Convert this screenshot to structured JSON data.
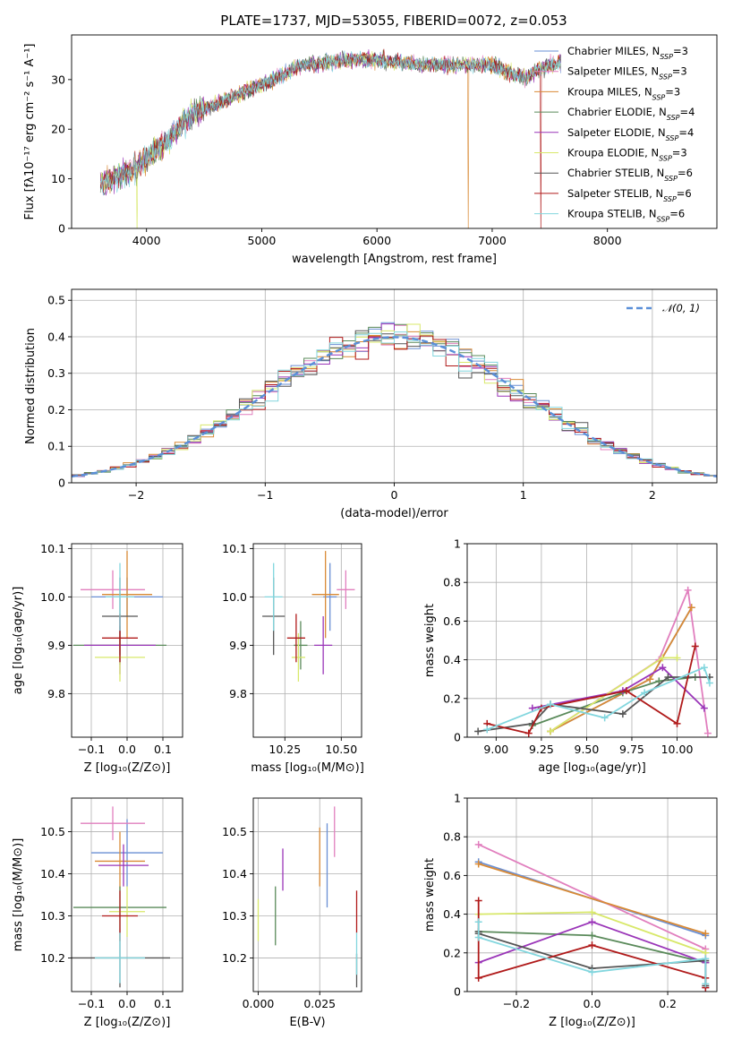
{
  "colors": {
    "Chabrier MILES": "#6a8fd4",
    "Salpeter MILES": "#e17fbe",
    "Kroupa MILES": "#d98a35",
    "Chabrier ELODIE": "#5a8a5a",
    "Salpeter ELODIE": "#9a35b8",
    "Kroupa ELODIE": "#d8e86a",
    "Chabrier STELIB": "#555555",
    "Salpeter STELIB": "#b01a1a",
    "Kroupa STELIB": "#82d6de"
  },
  "chart_data": [
    {
      "id": "spectrum",
      "type": "line",
      "title": "PLATE=1737, MJD=53055, FIBERID=0072, z=0.053",
      "xlabel": "wavelength [Angstrom, rest frame]",
      "ylabel": "Flux [fλ10⁻¹⁷ erg cm⁻² s⁻¹ A⁻¹]",
      "xlim": [
        3350,
        8950
      ],
      "ylim": [
        0,
        39
      ],
      "xticks": [
        4000,
        5000,
        6000,
        7000,
        8000
      ],
      "yticks": [
        0,
        10,
        20,
        30
      ],
      "legend_position": "top-right",
      "legend": [
        {
          "label": "Chabrier MILES, N",
          "sub": "SSP",
          "suffix": "=3"
        },
        {
          "label": "Salpeter MILES, N",
          "sub": "SSP",
          "suffix": "=3"
        },
        {
          "label": "Kroupa MILES, N",
          "sub": "SSP",
          "suffix": "=3"
        },
        {
          "label": "Chabrier ELODIE, N",
          "sub": "SSP",
          "suffix": "=4"
        },
        {
          "label": "Salpeter ELODIE, N",
          "sub": "SSP",
          "suffix": "=4"
        },
        {
          "label": "Kroupa ELODIE, N",
          "sub": "SSP",
          "suffix": "=3"
        },
        {
          "label": "Chabrier STELIB, N",
          "sub": "SSP",
          "suffix": "=6"
        },
        {
          "label": "Salpeter STELIB, N",
          "sub": "SSP",
          "suffix": "=6"
        },
        {
          "label": "Kroupa STELIB, N",
          "sub": "SSP",
          "suffix": "=6"
        }
      ],
      "continuum": {
        "x": [
          3600,
          3700,
          3800,
          3900,
          4000,
          4100,
          4200,
          4300,
          4400,
          4500,
          4600,
          4700,
          4800,
          4900,
          5000,
          5100,
          5200,
          5300,
          5400,
          5600,
          5800,
          6000,
          6200,
          6400,
          6600,
          6800,
          7000,
          7100,
          7200,
          7300,
          7400,
          7500,
          7600
        ],
        "y": [
          9,
          10,
          11,
          12,
          14,
          16,
          18,
          21,
          23,
          24,
          25,
          26,
          27,
          28,
          29,
          30,
          31,
          32.5,
          33,
          33.5,
          34,
          34,
          33.5,
          33,
          33,
          33,
          33,
          32,
          31,
          30.5,
          32,
          33,
          33.5
        ]
      }
    },
    {
      "id": "residuals",
      "type": "histogram",
      "xlabel": "(data-model)/error",
      "ylabel": "Normed distribution",
      "xlim": [
        -2.5,
        2.5
      ],
      "ylim": [
        0,
        0.53
      ],
      "xticks": [
        -2,
        -1,
        0,
        1,
        2
      ],
      "yticks": [
        0,
        0.1,
        0.2,
        0.3,
        0.4,
        0.5
      ],
      "bin_width": 0.1,
      "legend": [
        {
          "label": "𝒩(0, 1)",
          "style": "dashed"
        }
      ],
      "legend_position": "top-right"
    },
    {
      "id": "age-vs-Z",
      "type": "errorbar",
      "xlabel": "Z [log₁₀(Z/Z⊙)]",
      "ylabel": "age  [log₁₀(age/yr)]",
      "xlim": [
        -0.155,
        0.155
      ],
      "ylim": [
        9.71,
        10.11
      ],
      "xticks": [
        -0.1,
        0.0,
        0.1
      ],
      "xtick_labels": [
        "−0.1",
        "0.0",
        "0.1"
      ],
      "yticks": [
        9.8,
        9.9,
        10.0,
        10.1
      ],
      "ytick_labels": [
        "9.8",
        "9.9",
        "10.0",
        "10.1"
      ],
      "points": [
        {
          "series": "Chabrier MILES",
          "x": 0.0,
          "xerr": 0.1,
          "y": 10.0,
          "yerr": 0.04
        },
        {
          "series": "Salpeter MILES",
          "x": -0.04,
          "xerr": 0.09,
          "y": 10.015,
          "yerr": 0.04
        },
        {
          "series": "Kroupa MILES",
          "x": 0.0,
          "xerr": 0.07,
          "y": 10.005,
          "yerr": 0.09
        },
        {
          "series": "Chabrier ELODIE",
          "x": -0.02,
          "xerr": 0.13,
          "y": 9.9,
          "yerr": 0.04
        },
        {
          "series": "Salpeter ELODIE",
          "x": -0.02,
          "xerr": 0.1,
          "y": 9.9,
          "yerr": 0.06
        },
        {
          "series": "Kroupa ELODIE",
          "x": -0.02,
          "xerr": 0.07,
          "y": 9.875,
          "yerr": 0.05
        },
        {
          "series": "Chabrier STELIB",
          "x": -0.02,
          "xerr": 0.05,
          "y": 9.96,
          "yerr": 0.08
        },
        {
          "series": "Salpeter STELIB",
          "x": -0.02,
          "xerr": 0.05,
          "y": 9.915,
          "yerr": 0.05
        },
        {
          "series": "Kroupa STELIB",
          "x": -0.02,
          "xerr": 0.04,
          "y": 10.0,
          "yerr": 0.07
        }
      ]
    },
    {
      "id": "age-vs-mass",
      "type": "errorbar",
      "xlabel": "mass [log₁₀(M/M⊙)]",
      "ylabel": "",
      "xlim": [
        10.11,
        10.59
      ],
      "ylim": [
        9.71,
        10.11
      ],
      "xticks": [
        10.25,
        10.5
      ],
      "xtick_labels": [
        "10.25",
        "10.50"
      ],
      "yticks": [
        9.8,
        9.9,
        10.0,
        10.1
      ],
      "ytick_labels": [
        "9.8",
        "9.9",
        "10.0",
        "10.1"
      ],
      "points": [
        {
          "series": "Chabrier MILES",
          "x": 10.45,
          "xerr": 0.03,
          "y": 10.0,
          "yerr": 0.07
        },
        {
          "series": "Salpeter MILES",
          "x": 10.52,
          "xerr": 0.04,
          "y": 10.015,
          "yerr": 0.04
        },
        {
          "series": "Kroupa MILES",
          "x": 10.43,
          "xerr": 0.06,
          "y": 10.005,
          "yerr": 0.09
        },
        {
          "series": "Chabrier ELODIE",
          "x": 10.32,
          "xerr": 0.03,
          "y": 9.9,
          "yerr": 0.05
        },
        {
          "series": "Salpeter ELODIE",
          "x": 10.42,
          "xerr": 0.04,
          "y": 9.9,
          "yerr": 0.06
        },
        {
          "series": "Kroupa ELODIE",
          "x": 10.31,
          "xerr": 0.03,
          "y": 9.875,
          "yerr": 0.05
        },
        {
          "series": "Chabrier STELIB",
          "x": 10.2,
          "xerr": 0.05,
          "y": 9.96,
          "yerr": 0.08
        },
        {
          "series": "Salpeter STELIB",
          "x": 10.3,
          "xerr": 0.04,
          "y": 9.915,
          "yerr": 0.05
        },
        {
          "series": "Kroupa STELIB",
          "x": 10.2,
          "xerr": 0.04,
          "y": 10.0,
          "yerr": 0.07
        }
      ]
    },
    {
      "id": "weight-vs-age",
      "type": "line",
      "xlabel": "age  [log₁₀(age/yr)]",
      "ylabel": "mass weight",
      "xlim": [
        8.84,
        10.22
      ],
      "ylim": [
        0,
        1
      ],
      "xticks": [
        9.0,
        9.25,
        9.5,
        9.75,
        10.0
      ],
      "xtick_labels": [
        "9.00",
        "9.25",
        "9.50",
        "9.75",
        "10.00"
      ],
      "yticks": [
        0,
        0.2,
        0.4,
        0.6,
        0.8,
        1.0
      ],
      "series": [
        {
          "name": "Chabrier MILES",
          "x": [
            9.3,
            9.85,
            10.08
          ],
          "y": [
            0.03,
            0.3,
            0.67
          ]
        },
        {
          "name": "Salpeter MILES",
          "x": [
            9.3,
            9.9,
            10.06,
            10.17
          ],
          "y": [
            0.03,
            0.4,
            0.76,
            0.02
          ]
        },
        {
          "name": "Kroupa MILES",
          "x": [
            9.3,
            9.85,
            10.08
          ],
          "y": [
            0.03,
            0.3,
            0.67
          ]
        },
        {
          "name": "Chabrier ELODIE",
          "x": [
            9.2,
            9.7,
            9.9,
            10.1
          ],
          "y": [
            0.06,
            0.23,
            0.29,
            0.31
          ]
        },
        {
          "name": "Salpeter ELODIE",
          "x": [
            9.2,
            9.7,
            9.92,
            10.15
          ],
          "y": [
            0.15,
            0.24,
            0.36,
            0.15
          ]
        },
        {
          "name": "Kroupa ELODIE",
          "x": [
            9.3,
            9.92,
            10.0
          ],
          "y": [
            0.03,
            0.41,
            0.41
          ]
        },
        {
          "name": "Chabrier STELIB",
          "x": [
            8.9,
            9.2,
            9.3,
            9.7,
            9.95,
            10.18
          ],
          "y": [
            0.03,
            0.07,
            0.17,
            0.12,
            0.31,
            0.31
          ]
        },
        {
          "name": "Salpeter STELIB",
          "x": [
            8.95,
            9.18,
            9.25,
            9.72,
            10.0,
            10.1
          ],
          "y": [
            0.07,
            0.02,
            0.15,
            0.24,
            0.07,
            0.47
          ]
        },
        {
          "name": "Kroupa STELIB",
          "x": [
            8.95,
            9.3,
            9.6,
            9.82,
            10.15,
            10.18
          ],
          "y": [
            0.04,
            0.17,
            0.1,
            0.23,
            0.36,
            0.28
          ]
        }
      ]
    },
    {
      "id": "mass-vs-Z",
      "type": "errorbar",
      "xlabel": "Z [log₁₀(Z/Z⊙)]",
      "ylabel": "mass [log₁₀(M/M⊙)]",
      "xlim": [
        -0.155,
        0.155
      ],
      "ylim": [
        10.12,
        10.58
      ],
      "xticks": [
        -0.1,
        0.0,
        0.1
      ],
      "xtick_labels": [
        "−0.1",
        "0.0",
        "0.1"
      ],
      "yticks": [
        10.2,
        10.3,
        10.4,
        10.5
      ],
      "ytick_labels": [
        "10.2",
        "10.3",
        "10.4",
        "10.5"
      ],
      "points": [
        {
          "series": "Chabrier MILES",
          "x": 0.0,
          "xerr": 0.1,
          "y": 10.45,
          "yerr": 0.08
        },
        {
          "series": "Salpeter MILES",
          "x": -0.04,
          "xerr": 0.09,
          "y": 10.52,
          "yerr": 0.04
        },
        {
          "series": "Kroupa MILES",
          "x": -0.02,
          "xerr": 0.07,
          "y": 10.43,
          "yerr": 0.07
        },
        {
          "series": "Chabrier ELODIE",
          "x": -0.02,
          "xerr": 0.13,
          "y": 10.32,
          "yerr": 0.05
        },
        {
          "series": "Salpeter ELODIE",
          "x": -0.01,
          "xerr": 0.07,
          "y": 10.42,
          "yerr": 0.05
        },
        {
          "series": "Kroupa ELODIE",
          "x": 0.0,
          "xerr": 0.05,
          "y": 10.31,
          "yerr": 0.06
        },
        {
          "series": "Chabrier STELIB",
          "x": -0.02,
          "xerr": 0.14,
          "y": 10.2,
          "yerr": 0.07
        },
        {
          "series": "Salpeter STELIB",
          "x": -0.02,
          "xerr": 0.05,
          "y": 10.3,
          "yerr": 0.06
        },
        {
          "series": "Kroupa STELIB",
          "x": -0.02,
          "xerr": 0.07,
          "y": 10.2,
          "yerr": 0.06
        }
      ]
    },
    {
      "id": "mass-vs-ebv",
      "type": "errorbar",
      "xlabel": "E(B-V)",
      "ylabel": "",
      "xlim": [
        -0.002,
        0.042
      ],
      "ylim": [
        10.12,
        10.58
      ],
      "xticks": [
        0.0,
        0.025
      ],
      "xtick_labels": [
        "0.000",
        "0.025"
      ],
      "yticks": [
        10.2,
        10.3,
        10.4,
        10.5
      ],
      "ytick_labels": [
        "10.2",
        "10.3",
        "10.4",
        "10.5"
      ],
      "points": [
        {
          "series": "Chabrier MILES",
          "x": 0.028,
          "xerr": 0,
          "y": 10.42,
          "yerr": 0.1
        },
        {
          "series": "Salpeter MILES",
          "x": 0.031,
          "xerr": 0,
          "y": 10.5,
          "yerr": 0.06
        },
        {
          "series": "Kroupa MILES",
          "x": 0.025,
          "xerr": 0,
          "y": 10.44,
          "yerr": 0.07
        },
        {
          "series": "Chabrier ELODIE",
          "x": 0.007,
          "xerr": 0,
          "y": 10.3,
          "yerr": 0.07
        },
        {
          "series": "Salpeter ELODIE",
          "x": 0.01,
          "xerr": 0,
          "y": 10.41,
          "yerr": 0.05
        },
        {
          "series": "Kroupa ELODIE",
          "x": 0.0,
          "xerr": 0,
          "y": 10.29,
          "yerr": 0.05
        },
        {
          "series": "Chabrier STELIB",
          "x": 0.04,
          "xerr": 0,
          "y": 10.17,
          "yerr": 0.04
        },
        {
          "series": "Salpeter STELIB",
          "x": 0.04,
          "xerr": 0,
          "y": 10.31,
          "yerr": 0.05
        },
        {
          "series": "Kroupa STELIB",
          "x": 0.04,
          "xerr": 0,
          "y": 10.21,
          "yerr": 0.05
        }
      ]
    },
    {
      "id": "weight-vs-Z",
      "type": "line",
      "xlabel": "Z [log₁₀(Z/Z⊙)]",
      "ylabel": "mass weight",
      "xlim": [
        -0.33,
        0.33
      ],
      "ylim": [
        0,
        1
      ],
      "xticks": [
        -0.2,
        0.0,
        0.2
      ],
      "xtick_labels": [
        "−0.2",
        "0.0",
        "0.2"
      ],
      "yticks": [
        0,
        0.2,
        0.4,
        0.6,
        0.8,
        1.0
      ],
      "series": [
        {
          "name": "Chabrier MILES",
          "x": [
            -0.3,
            0.3
          ],
          "y": [
            0.67,
            0.29
          ]
        },
        {
          "name": "Salpeter MILES",
          "x": [
            -0.3,
            0.3,
            0.3
          ],
          "y": [
            0.76,
            0.22,
            0.02
          ]
        },
        {
          "name": "Kroupa MILES",
          "x": [
            -0.3,
            0.3
          ],
          "y": [
            0.66,
            0.3
          ]
        },
        {
          "name": "Chabrier ELODIE",
          "x": [
            -0.3,
            0.0,
            0.3
          ],
          "y": [
            0.31,
            0.29,
            0.15
          ]
        },
        {
          "name": "Salpeter ELODIE",
          "x": [
            -0.3,
            0.0,
            0.3
          ],
          "y": [
            0.15,
            0.36,
            0.15
          ]
        },
        {
          "name": "Kroupa ELODIE",
          "x": [
            -0.3,
            0.0,
            0.3
          ],
          "y": [
            0.4,
            0.41,
            0.2
          ]
        },
        {
          "name": "Chabrier STELIB",
          "x": [
            -0.3,
            -0.3,
            0.0,
            0.3,
            0.3
          ],
          "y": [
            0.31,
            0.3,
            0.12,
            0.16,
            0.03
          ]
        },
        {
          "name": "Salpeter STELIB",
          "x": [
            -0.3,
            -0.3,
            0.0,
            0.3,
            0.3
          ],
          "y": [
            0.47,
            0.07,
            0.24,
            0.07,
            0.02
          ]
        },
        {
          "name": "Kroupa STELIB",
          "x": [
            -0.3,
            -0.3,
            0.0,
            0.3,
            0.3
          ],
          "y": [
            0.36,
            0.28,
            0.1,
            0.17,
            0.04
          ]
        }
      ]
    }
  ]
}
